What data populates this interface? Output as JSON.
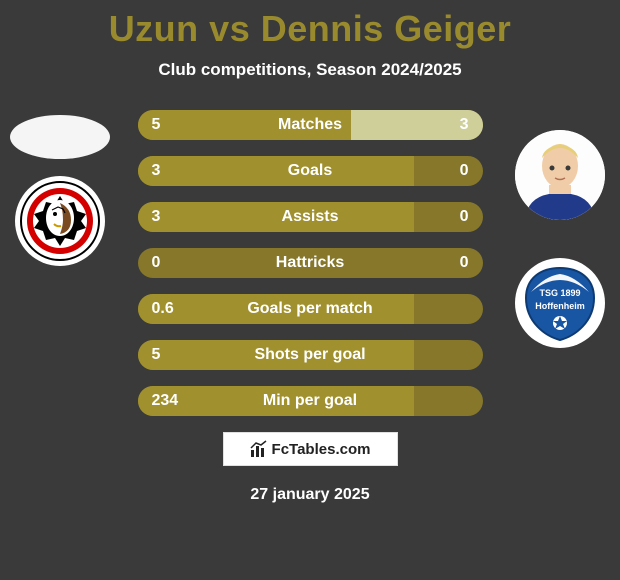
{
  "title": "Uzun vs Dennis Geiger",
  "subtitle": "Club competitions, Season 2024/2025",
  "colors": {
    "bg": "#3a3a3a",
    "title": "#9a8a2e",
    "bar_base": "#86772a",
    "bar_left_fill": "#a0902e",
    "bar_right_fill": "#cfcf9a",
    "text": "#ffffff"
  },
  "rows": [
    {
      "label": "Matches",
      "left": "5",
      "right": "3",
      "left_pct": 62,
      "right_pct": 38
    },
    {
      "label": "Goals",
      "left": "3",
      "right": "0",
      "left_pct": 80,
      "right_pct": 0
    },
    {
      "label": "Assists",
      "left": "3",
      "right": "0",
      "left_pct": 80,
      "right_pct": 0
    },
    {
      "label": "Hattricks",
      "left": "0",
      "right": "0",
      "left_pct": 0,
      "right_pct": 0
    },
    {
      "label": "Goals per match",
      "left": "0.6",
      "right": "",
      "left_pct": 80,
      "right_pct": 0
    },
    {
      "label": "Shots per goal",
      "left": "5",
      "right": "",
      "left_pct": 80,
      "right_pct": 0
    },
    {
      "label": "Min per goal",
      "left": "234",
      "right": "",
      "left_pct": 80,
      "right_pct": 0
    }
  ],
  "footer_brand": "FcTables.com",
  "footer_date": "27 january 2025",
  "left_club": "Eintracht Frankfurt",
  "right_club": "TSG 1899 Hoffenheim",
  "right_player": "Dennis Geiger"
}
